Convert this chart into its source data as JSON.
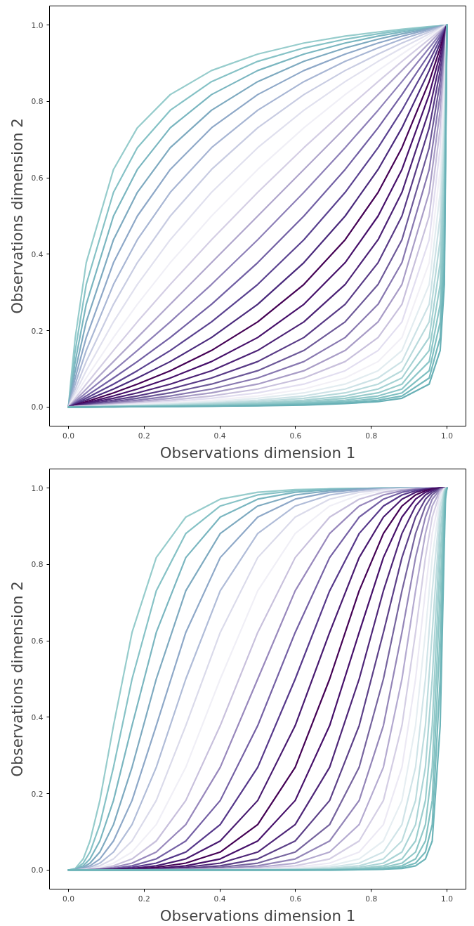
{
  "chart_data": [
    {
      "type": "line",
      "xlabel": "Observations dimension 1",
      "ylabel": "Observations dimension 2",
      "xlim": [
        -0.05,
        1.05
      ],
      "ylim": [
        -0.05,
        1.05
      ],
      "xticks": [
        {
          "value": 0,
          "label": "0.0"
        },
        {
          "value": 0.2,
          "label": "0.2"
        },
        {
          "value": 0.4,
          "label": "0.4"
        },
        {
          "value": 0.6,
          "label": "0.6"
        },
        {
          "value": 0.8,
          "label": "0.8"
        },
        {
          "value": 1,
          "label": "1.0"
        }
      ],
      "yticks": [
        {
          "value": 0,
          "label": "0.0"
        },
        {
          "value": 0.2,
          "label": "0.2"
        },
        {
          "value": 0.4,
          "label": "0.4"
        },
        {
          "value": 0.6,
          "label": "0.6"
        },
        {
          "value": 0.8,
          "label": "0.8"
        },
        {
          "value": 1,
          "label": "1.0"
        }
      ],
      "x": [
        0,
        0.007,
        0.018,
        0.047,
        0.119,
        0.182,
        0.269,
        0.378,
        0.5,
        0.622,
        0.731,
        0.818,
        0.881,
        0.953,
        0.982,
        0.993,
        1
      ],
      "series": [
        {
          "color": "#96cccc",
          "values": [
            0,
            0.076,
            0.182,
            0.378,
            0.622,
            0.731,
            0.818,
            0.881,
            0.924,
            0.953,
            0.971,
            0.982,
            0.989,
            0.996,
            0.998,
            0.999,
            1
          ]
        },
        {
          "color": "#86c2c6",
          "values": [
            0,
            0.06,
            0.148,
            0.321,
            0.562,
            0.679,
            0.777,
            0.852,
            0.905,
            0.94,
            0.963,
            0.977,
            0.986,
            0.995,
            0.998,
            0.999,
            1
          ]
        },
        {
          "color": "#7ab6c0",
          "values": [
            0,
            0.047,
            0.119,
            0.269,
            0.5,
            0.622,
            0.731,
            0.818,
            0.881,
            0.924,
            0.953,
            0.971,
            0.982,
            0.993,
            0.998,
            0.999,
            1
          ]
        },
        {
          "color": "#7eaac0",
          "values": [
            0,
            0.037,
            0.095,
            0.223,
            0.438,
            0.562,
            0.679,
            0.777,
            0.852,
            0.905,
            0.94,
            0.963,
            0.977,
            0.991,
            0.997,
            0.999,
            1
          ]
        },
        {
          "color": "#8ea8c8",
          "values": [
            0,
            0.029,
            0.076,
            0.182,
            0.378,
            0.5,
            0.622,
            0.731,
            0.818,
            0.881,
            0.924,
            0.953,
            0.971,
            0.989,
            0.996,
            0.998,
            1
          ]
        },
        {
          "color": "#a8b6d4",
          "values": [
            0,
            0.023,
            0.06,
            0.148,
            0.321,
            0.438,
            0.562,
            0.679,
            0.777,
            0.852,
            0.905,
            0.94,
            0.963,
            0.986,
            0.995,
            0.998,
            1
          ]
        },
        {
          "color": "#c8cce2",
          "values": [
            0,
            0.018,
            0.047,
            0.119,
            0.269,
            0.378,
            0.5,
            0.622,
            0.731,
            0.818,
            0.881,
            0.924,
            0.953,
            0.982,
            0.993,
            0.998,
            1
          ]
        },
        {
          "color": "#e0e0ee",
          "values": [
            0,
            0.014,
            0.037,
            0.095,
            0.223,
            0.321,
            0.438,
            0.562,
            0.679,
            0.777,
            0.852,
            0.905,
            0.94,
            0.977,
            0.991,
            0.997,
            1
          ]
        },
        {
          "color": "#f0eff6",
          "values": [
            0,
            0.011,
            0.029,
            0.076,
            0.182,
            0.269,
            0.378,
            0.5,
            0.622,
            0.731,
            0.818,
            0.881,
            0.924,
            0.971,
            0.989,
            0.996,
            1
          ]
        },
        {
          "color": "#d4cee4",
          "values": [
            0,
            0.009,
            0.023,
            0.06,
            0.148,
            0.223,
            0.321,
            0.438,
            0.562,
            0.679,
            0.777,
            0.852,
            0.905,
            0.963,
            0.986,
            0.995,
            1
          ]
        },
        {
          "color": "#b0a6cc",
          "values": [
            0,
            0.007,
            0.018,
            0.047,
            0.119,
            0.182,
            0.269,
            0.378,
            0.5,
            0.622,
            0.731,
            0.818,
            0.881,
            0.953,
            0.982,
            0.993,
            1
          ]
        },
        {
          "color": "#8e80b8",
          "values": [
            0,
            0.005,
            0.014,
            0.037,
            0.095,
            0.148,
            0.223,
            0.321,
            0.438,
            0.562,
            0.679,
            0.777,
            0.852,
            0.94,
            0.977,
            0.991,
            1
          ]
        },
        {
          "color": "#7260a4",
          "values": [
            0,
            0.004,
            0.011,
            0.029,
            0.076,
            0.119,
            0.182,
            0.269,
            0.378,
            0.5,
            0.622,
            0.731,
            0.818,
            0.924,
            0.971,
            0.989,
            1
          ]
        },
        {
          "color": "#5a4290",
          "values": [
            0,
            0.003,
            0.009,
            0.023,
            0.06,
            0.095,
            0.148,
            0.223,
            0.321,
            0.438,
            0.562,
            0.679,
            0.777,
            0.905,
            0.963,
            0.986,
            1
          ]
        },
        {
          "color": "#4a2a7c",
          "values": [
            0,
            0.002,
            0.007,
            0.018,
            0.047,
            0.076,
            0.119,
            0.182,
            0.269,
            0.378,
            0.5,
            0.622,
            0.731,
            0.881,
            0.953,
            0.982,
            1
          ]
        },
        {
          "color": "#440154",
          "values": [
            0,
            0.002,
            0.005,
            0.014,
            0.037,
            0.06,
            0.095,
            0.148,
            0.223,
            0.321,
            0.438,
            0.562,
            0.679,
            0.852,
            0.94,
            0.977,
            1
          ]
        },
        {
          "color": "#46106a",
          "values": [
            0,
            0.002,
            0.004,
            0.011,
            0.029,
            0.047,
            0.076,
            0.119,
            0.182,
            0.269,
            0.378,
            0.5,
            0.622,
            0.818,
            0.924,
            0.971,
            1
          ]
        },
        {
          "color": "#4c2276",
          "values": [
            0,
            0.001,
            0.003,
            0.009,
            0.023,
            0.037,
            0.06,
            0.095,
            0.148,
            0.223,
            0.321,
            0.438,
            0.562,
            0.777,
            0.905,
            0.963,
            1
          ]
        },
        {
          "color": "#583a86",
          "values": [
            0,
            0.001,
            0.002,
            0.007,
            0.018,
            0.029,
            0.047,
            0.076,
            0.119,
            0.182,
            0.269,
            0.378,
            0.5,
            0.731,
            0.881,
            0.953,
            1
          ]
        },
        {
          "color": "#6c5898",
          "values": [
            0,
            0.001,
            0.002,
            0.005,
            0.014,
            0.023,
            0.037,
            0.06,
            0.095,
            0.148,
            0.223,
            0.321,
            0.438,
            0.679,
            0.852,
            0.94,
            1
          ]
        },
        {
          "color": "#8878b0",
          "values": [
            0,
            0.001,
            0.002,
            0.004,
            0.011,
            0.018,
            0.029,
            0.047,
            0.076,
            0.119,
            0.182,
            0.269,
            0.378,
            0.622,
            0.818,
            0.924,
            1
          ]
        },
        {
          "color": "#a89cc6",
          "values": [
            0,
            0,
            0.001,
            0.003,
            0.009,
            0.014,
            0.023,
            0.037,
            0.06,
            0.095,
            0.148,
            0.223,
            0.321,
            0.562,
            0.777,
            0.905,
            1
          ]
        },
        {
          "color": "#c8c0dc",
          "values": [
            0,
            0,
            0.001,
            0.002,
            0.007,
            0.011,
            0.018,
            0.029,
            0.047,
            0.076,
            0.119,
            0.182,
            0.269,
            0.5,
            0.731,
            0.881,
            1
          ]
        },
        {
          "color": "#e2def0",
          "values": [
            0,
            0,
            0.001,
            0.002,
            0.005,
            0.009,
            0.014,
            0.023,
            0.037,
            0.06,
            0.095,
            0.148,
            0.223,
            0.438,
            0.679,
            0.852,
            1
          ]
        },
        {
          "color": "#f2f0f6",
          "values": [
            0,
            0,
            0.001,
            0.002,
            0.004,
            0.007,
            0.011,
            0.018,
            0.029,
            0.047,
            0.076,
            0.119,
            0.182,
            0.378,
            0.622,
            0.818,
            1
          ]
        },
        {
          "color": "#e2ecf0",
          "values": [
            0,
            0,
            0,
            0.001,
            0.003,
            0.005,
            0.009,
            0.014,
            0.023,
            0.037,
            0.06,
            0.095,
            0.148,
            0.321,
            0.562,
            0.777,
            1
          ]
        },
        {
          "color": "#cce2e6",
          "values": [
            0,
            0,
            0,
            0.001,
            0.002,
            0.004,
            0.007,
            0.011,
            0.018,
            0.029,
            0.047,
            0.076,
            0.119,
            0.269,
            0.5,
            0.731,
            1
          ]
        },
        {
          "color": "#b8dadc",
          "values": [
            0,
            0,
            0,
            0.001,
            0.002,
            0.003,
            0.005,
            0.009,
            0.014,
            0.023,
            0.037,
            0.06,
            0.095,
            0.223,
            0.438,
            0.679,
            1
          ]
        },
        {
          "color": "#a6d2d4",
          "values": [
            0,
            0,
            0,
            0.001,
            0.002,
            0.002,
            0.004,
            0.007,
            0.011,
            0.018,
            0.029,
            0.047,
            0.076,
            0.182,
            0.378,
            0.622,
            1
          ]
        },
        {
          "color": "#98cccc",
          "values": [
            0,
            0,
            0,
            0,
            0.001,
            0.002,
            0.003,
            0.005,
            0.009,
            0.014,
            0.023,
            0.037,
            0.06,
            0.148,
            0.321,
            0.562,
            1
          ]
        },
        {
          "color": "#8cc6c8",
          "values": [
            0,
            0,
            0,
            0,
            0.001,
            0.002,
            0.002,
            0.004,
            0.007,
            0.011,
            0.018,
            0.029,
            0.047,
            0.119,
            0.269,
            0.5,
            1
          ]
        },
        {
          "color": "#80c0c2",
          "values": [
            0,
            0,
            0,
            0,
            0.001,
            0.001,
            0.002,
            0.003,
            0.005,
            0.009,
            0.014,
            0.023,
            0.037,
            0.095,
            0.223,
            0.438,
            1
          ]
        },
        {
          "color": "#74b8bc",
          "values": [
            0,
            0,
            0,
            0,
            0.001,
            0.001,
            0.002,
            0.002,
            0.004,
            0.007,
            0.011,
            0.018,
            0.029,
            0.076,
            0.182,
            0.378,
            1
          ]
        },
        {
          "color": "#68b0b6",
          "values": [
            0,
            0,
            0,
            0,
            0,
            0.001,
            0.001,
            0.002,
            0.003,
            0.005,
            0.009,
            0.014,
            0.023,
            0.06,
            0.148,
            0.321,
            1
          ]
        }
      ]
    },
    {
      "type": "line",
      "xlabel": "Observations dimension 1",
      "ylabel": "Observations dimension 2",
      "xlim": [
        -0.05,
        1.05
      ],
      "ylim": [
        -0.05,
        1.05
      ],
      "xticks": [
        {
          "value": 0,
          "label": "0.0"
        },
        {
          "value": 0.2,
          "label": "0.2"
        },
        {
          "value": 0.4,
          "label": "0.4"
        },
        {
          "value": 0.6,
          "label": "0.6"
        },
        {
          "value": 0.8,
          "label": "0.8"
        },
        {
          "value": 1,
          "label": "1.0"
        }
      ],
      "yticks": [
        {
          "value": 0,
          "label": "0.0"
        },
        {
          "value": 0.2,
          "label": "0.2"
        },
        {
          "value": 0.4,
          "label": "0.4"
        },
        {
          "value": 0.6,
          "label": "0.6"
        },
        {
          "value": 0.8,
          "label": "0.8"
        },
        {
          "value": 1,
          "label": "1.0"
        }
      ],
      "x": [
        0,
        0.018,
        0.039,
        0.057,
        0.083,
        0.119,
        0.168,
        0.232,
        0.31,
        0.401,
        0.5,
        0.599,
        0.69,
        0.768,
        0.832,
        0.881,
        0.917,
        0.943,
        0.961,
        0.982,
        0.992,
        0.996,
        1
      ],
      "series": [
        {
          "color": "#96cccc",
          "values": [
            0,
            0.004,
            0.029,
            0.076,
            0.182,
            0.378,
            0.622,
            0.818,
            0.924,
            0.971,
            0.989,
            0.996,
            0.998,
            0.999,
            1,
            1,
            1,
            1,
            1,
            1,
            1,
            1,
            1
          ]
        },
        {
          "color": "#86c2c6",
          "values": [
            0,
            0.002,
            0.018,
            0.047,
            0.119,
            0.269,
            0.5,
            0.731,
            0.881,
            0.953,
            0.982,
            0.993,
            0.998,
            0.999,
            1,
            1,
            1,
            1,
            1,
            1,
            1,
            1,
            1
          ]
        },
        {
          "color": "#7ab6c0",
          "values": [
            0,
            0.002,
            0.011,
            0.029,
            0.076,
            0.182,
            0.378,
            0.622,
            0.818,
            0.924,
            0.971,
            0.989,
            0.996,
            0.998,
            0.999,
            1,
            1,
            1,
            1,
            1,
            1,
            1,
            1
          ]
        },
        {
          "color": "#7eaac0",
          "values": [
            0,
            0.001,
            0.007,
            0.018,
            0.047,
            0.119,
            0.269,
            0.5,
            0.731,
            0.881,
            0.953,
            0.982,
            0.993,
            0.998,
            0.999,
            1,
            1,
            1,
            1,
            1,
            1,
            1,
            1
          ]
        },
        {
          "color": "#8ea8c8",
          "values": [
            0,
            0.001,
            0.004,
            0.011,
            0.029,
            0.076,
            0.182,
            0.378,
            0.622,
            0.818,
            0.924,
            0.971,
            0.989,
            0.996,
            0.998,
            0.999,
            1,
            1,
            1,
            1,
            1,
            1,
            1
          ]
        },
        {
          "color": "#b0bcd8",
          "values": [
            0,
            0,
            0.002,
            0.007,
            0.018,
            0.047,
            0.119,
            0.269,
            0.5,
            0.731,
            0.881,
            0.953,
            0.982,
            0.993,
            0.998,
            0.999,
            1,
            1,
            1,
            1,
            1,
            1,
            1
          ]
        },
        {
          "color": "#dadaea",
          "values": [
            0,
            0,
            0.002,
            0.004,
            0.011,
            0.029,
            0.076,
            0.182,
            0.378,
            0.622,
            0.818,
            0.924,
            0.971,
            0.989,
            0.996,
            0.998,
            0.999,
            1,
            1,
            1,
            1,
            1,
            1
          ]
        },
        {
          "color": "#f0eff6",
          "values": [
            0,
            0,
            0.001,
            0.002,
            0.007,
            0.018,
            0.047,
            0.119,
            0.269,
            0.5,
            0.731,
            0.881,
            0.953,
            0.982,
            0.993,
            0.998,
            0.999,
            1,
            1,
            1,
            1,
            1,
            1
          ]
        },
        {
          "color": "#c8c0dc",
          "values": [
            0,
            0,
            0.001,
            0.002,
            0.004,
            0.011,
            0.029,
            0.076,
            0.182,
            0.378,
            0.622,
            0.818,
            0.924,
            0.971,
            0.989,
            0.996,
            0.998,
            0.999,
            1,
            1,
            1,
            1,
            1
          ]
        },
        {
          "color": "#9888bc",
          "values": [
            0,
            0,
            0,
            0.001,
            0.002,
            0.007,
            0.018,
            0.047,
            0.119,
            0.269,
            0.5,
            0.731,
            0.881,
            0.953,
            0.982,
            0.993,
            0.998,
            0.999,
            1,
            1,
            1,
            1,
            1
          ]
        },
        {
          "color": "#7460a4",
          "values": [
            0,
            0,
            0,
            0.001,
            0.002,
            0.004,
            0.011,
            0.029,
            0.076,
            0.182,
            0.378,
            0.622,
            0.818,
            0.924,
            0.971,
            0.989,
            0.996,
            0.998,
            0.999,
            1,
            1,
            1,
            1
          ]
        },
        {
          "color": "#56388a",
          "values": [
            0,
            0,
            0,
            0,
            0.001,
            0.002,
            0.007,
            0.018,
            0.047,
            0.119,
            0.269,
            0.5,
            0.731,
            0.881,
            0.953,
            0.982,
            0.993,
            0.998,
            0.999,
            1,
            1,
            1,
            1
          ]
        },
        {
          "color": "#481a70",
          "values": [
            null,
            null,
            0,
            0,
            0.001,
            0.002,
            0.004,
            0.011,
            0.029,
            0.076,
            0.182,
            0.378,
            0.622,
            0.818,
            0.924,
            0.971,
            0.989,
            0.996,
            0.998,
            1,
            1,
            1,
            1
          ]
        },
        {
          "color": "#440154",
          "values": [
            null,
            null,
            0,
            0,
            0,
            0.001,
            0.002,
            0.007,
            0.018,
            0.047,
            0.119,
            0.269,
            0.5,
            0.731,
            0.881,
            0.953,
            0.982,
            0.993,
            0.998,
            1,
            1,
            1,
            1
          ]
        },
        {
          "color": "#46106a",
          "values": [
            null,
            null,
            0,
            0,
            0,
            0.001,
            0.002,
            0.004,
            0.011,
            0.029,
            0.076,
            0.182,
            0.378,
            0.622,
            0.818,
            0.924,
            0.971,
            0.989,
            0.996,
            0.999,
            1,
            1,
            1
          ]
        },
        {
          "color": "#4e2678",
          "values": [
            0,
            0,
            0,
            0,
            0,
            0,
            0.001,
            0.002,
            0.007,
            0.018,
            0.047,
            0.119,
            0.269,
            0.5,
            0.731,
            0.881,
            0.953,
            0.982,
            0.993,
            0.999,
            1,
            1,
            1
          ]
        },
        {
          "color": "#5c4088",
          "values": [
            0,
            0,
            0,
            0,
            0,
            0,
            0.001,
            0.002,
            0.004,
            0.011,
            0.029,
            0.076,
            0.182,
            0.378,
            0.622,
            0.818,
            0.924,
            0.971,
            0.989,
            0.998,
            1,
            1,
            1
          ]
        },
        {
          "color": "#76649e",
          "values": [
            0,
            0,
            0,
            0,
            0,
            0,
            0,
            0.001,
            0.002,
            0.007,
            0.018,
            0.047,
            0.119,
            0.269,
            0.5,
            0.731,
            0.881,
            0.953,
            0.982,
            0.998,
            1,
            1,
            1
          ]
        },
        {
          "color": "#9486b8",
          "values": [
            0,
            0,
            0,
            0,
            0,
            0,
            0,
            0.001,
            0.002,
            0.004,
            0.011,
            0.029,
            0.076,
            0.182,
            0.378,
            0.622,
            0.818,
            0.924,
            0.971,
            0.996,
            0.999,
            1,
            1
          ]
        },
        {
          "color": "#b4aad0",
          "values": [
            0,
            0,
            0,
            0,
            0,
            0,
            0,
            0,
            0.001,
            0.002,
            0.007,
            0.018,
            0.047,
            0.119,
            0.269,
            0.5,
            0.731,
            0.881,
            0.953,
            0.993,
            0.999,
            1,
            1
          ]
        },
        {
          "color": "#d4cee4",
          "values": [
            0,
            0,
            0,
            0,
            0,
            0,
            0,
            0,
            0.001,
            0.002,
            0.004,
            0.011,
            0.029,
            0.076,
            0.182,
            0.378,
            0.622,
            0.818,
            0.924,
            0.989,
            0.998,
            1,
            1
          ]
        },
        {
          "color": "#ece9f4",
          "values": [
            0,
            0,
            0,
            0,
            0,
            0,
            0,
            0,
            0,
            0.001,
            0.002,
            0.007,
            0.018,
            0.047,
            0.119,
            0.269,
            0.5,
            0.731,
            0.881,
            0.982,
            0.998,
            1,
            1
          ]
        },
        {
          "color": "#e6eef2",
          "values": [
            0,
            0,
            0,
            0,
            0,
            0,
            0,
            0,
            0,
            0.001,
            0.002,
            0.004,
            0.011,
            0.029,
            0.076,
            0.182,
            0.378,
            0.622,
            0.818,
            0.971,
            0.996,
            0.999,
            1
          ]
        },
        {
          "color": "#d0e4e8",
          "values": [
            0,
            0,
            0,
            0,
            0,
            0,
            0,
            0,
            0,
            0,
            0.001,
            0.002,
            0.007,
            0.018,
            0.047,
            0.119,
            0.269,
            0.5,
            0.731,
            0.953,
            0.993,
            0.999,
            1
          ]
        },
        {
          "color": "#bcdcde",
          "values": [
            0,
            0,
            0,
            0,
            0,
            0,
            0,
            0,
            0,
            0,
            0.001,
            0.002,
            0.004,
            0.011,
            0.029,
            0.076,
            0.182,
            0.378,
            0.622,
            0.924,
            0.989,
            0.998,
            1
          ]
        },
        {
          "color": "#aad4d6",
          "values": [
            0,
            0,
            0,
            0,
            0,
            0,
            0,
            0,
            0,
            0,
            0,
            0.001,
            0.002,
            0.007,
            0.018,
            0.047,
            0.119,
            0.269,
            0.5,
            0.881,
            0.982,
            0.998,
            1
          ]
        },
        {
          "color": "#9ccece",
          "values": [
            0,
            0,
            0,
            0,
            0,
            0,
            0,
            0,
            0,
            0,
            0,
            0.001,
            0.002,
            0.004,
            0.011,
            0.029,
            0.076,
            0.182,
            0.378,
            0.818,
            0.971,
            0.996,
            1
          ]
        },
        {
          "color": "#90c8c8",
          "values": [
            0,
            0,
            0,
            0,
            0,
            0,
            0,
            0,
            0,
            0,
            0,
            0,
            0.001,
            0.002,
            0.007,
            0.018,
            0.047,
            0.119,
            0.269,
            0.731,
            0.953,
            0.993,
            1
          ]
        },
        {
          "color": "#84c2c2",
          "values": [
            0,
            0,
            0,
            0,
            0,
            0,
            0,
            0,
            0,
            0,
            0,
            0,
            0.001,
            0.002,
            0.004,
            0.011,
            0.029,
            0.076,
            0.182,
            0.622,
            0.924,
            0.989,
            1
          ]
        },
        {
          "color": "#78bbbd",
          "values": [
            0,
            0,
            0,
            0,
            0,
            0,
            0,
            0,
            0,
            0,
            0,
            0,
            0,
            0.001,
            0.002,
            0.007,
            0.018,
            0.047,
            0.119,
            0.5,
            0.881,
            0.982,
            1
          ]
        },
        {
          "color": "#6cb4b8",
          "values": [
            0,
            0,
            0,
            0,
            0,
            0,
            0,
            0,
            0,
            0,
            0,
            0,
            0,
            0.001,
            0.002,
            0.004,
            0.011,
            0.029,
            0.076,
            0.378,
            0.818,
            0.971,
            1
          ]
        }
      ]
    }
  ]
}
